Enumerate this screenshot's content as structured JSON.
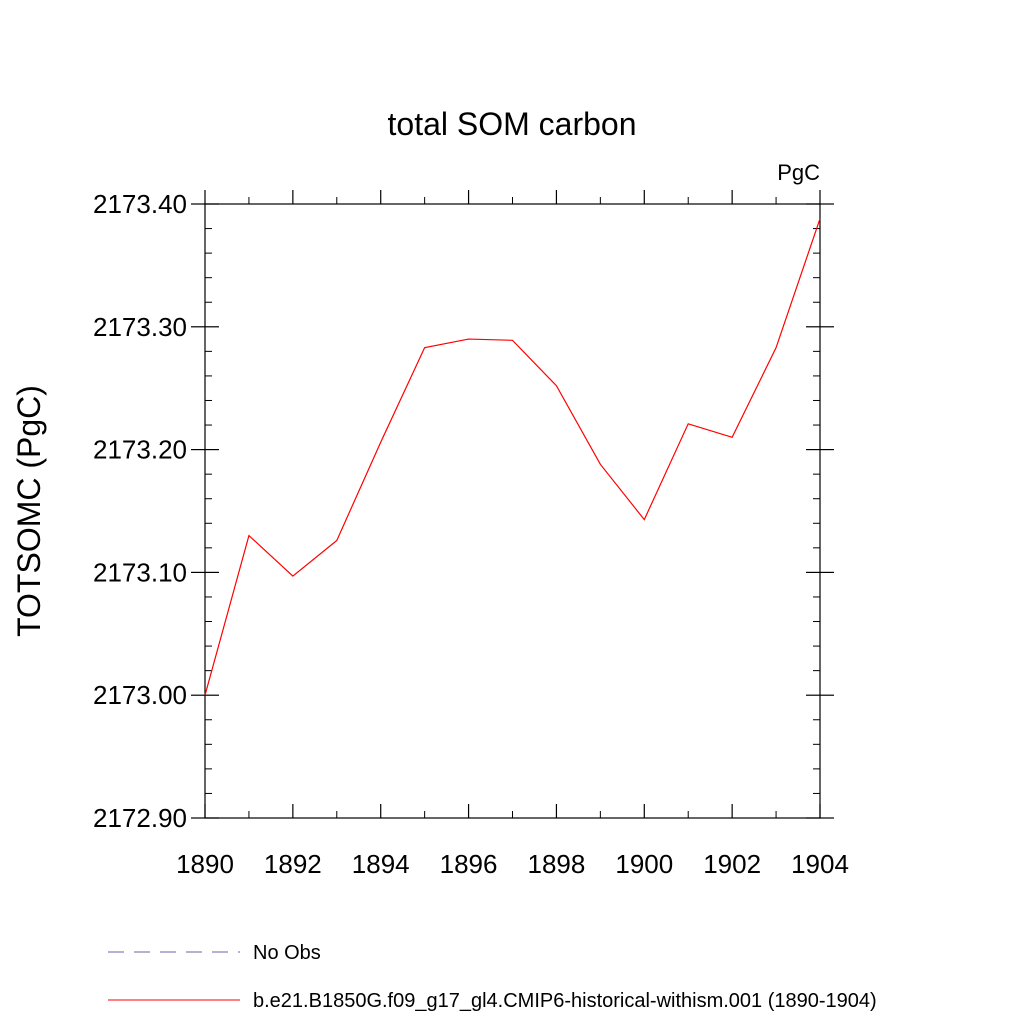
{
  "chart_data": {
    "type": "line",
    "title": "total SOM carbon",
    "units_label": "PgC",
    "ylabel": "TOTSOMC  (PgC)",
    "xlabel": "",
    "xlim": [
      1890,
      1904
    ],
    "ylim": [
      2172.9,
      2173.4
    ],
    "x_ticks": [
      1890,
      1892,
      1894,
      1896,
      1898,
      1900,
      1902,
      1904
    ],
    "x_tick_labels": [
      "1890",
      "1892",
      "1894",
      "1896",
      "1898",
      "1900",
      "1902",
      "1904"
    ],
    "y_ticks": [
      2172.9,
      2173.0,
      2173.1,
      2173.2,
      2173.3,
      2173.4
    ],
    "y_tick_labels": [
      "2172.90",
      "2173.00",
      "2173.10",
      "2173.20",
      "2173.30",
      "2173.40"
    ],
    "grid": false,
    "legend_position": "bottom",
    "x": [
      1890,
      1891,
      1892,
      1893,
      1894,
      1895,
      1896,
      1897,
      1898,
      1899,
      1900,
      1901,
      1902,
      1903,
      1904
    ],
    "series": [
      {
        "name": "b.e21.B1850G.f09_g17_gl4.CMIP6-historical-withism.001 (1890-1904)",
        "color": "#ff0000",
        "style": "solid",
        "values": [
          2173.0,
          2173.13,
          2173.097,
          2173.126,
          2173.206,
          2173.283,
          2173.29,
          2173.289,
          2173.252,
          2173.188,
          2173.143,
          2173.221,
          2173.21,
          2173.283,
          2173.388
        ]
      }
    ],
    "legend": [
      {
        "label": "No Obs",
        "color": "#6f5fa8",
        "style": "dashed"
      },
      {
        "label": "b.e21.B1850G.f09_g17_gl4.CMIP6-historical-withism.001 (1890-1904)",
        "color": "#ff0000",
        "style": "solid"
      }
    ]
  }
}
